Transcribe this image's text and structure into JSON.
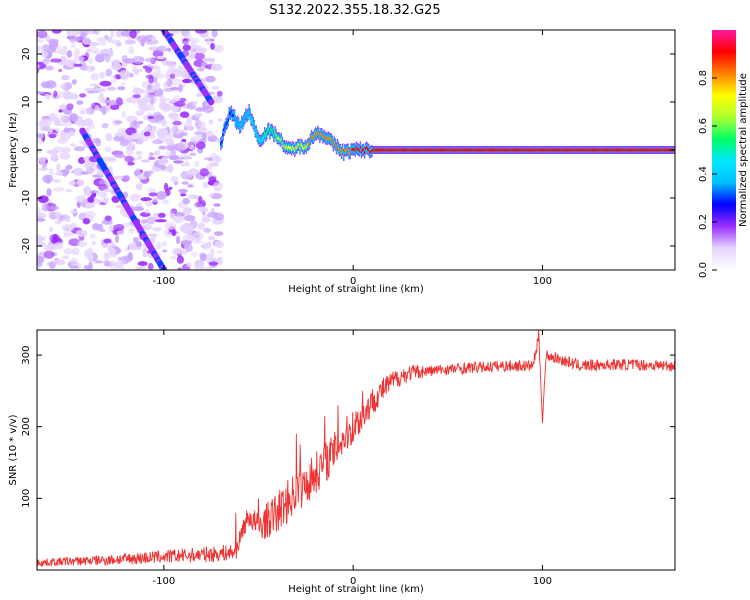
{
  "title": "S132.2022.355.18.32.G25",
  "colors": {
    "signal": "#ee3333",
    "axis": "#000000",
    "background": "#ffffff",
    "colormap": [
      "#ffffff",
      "#e6d5ff",
      "#9b30ff",
      "#0000ff",
      "#00bfff",
      "#00e8ff",
      "#00ff66",
      "#adff2f",
      "#ffff00",
      "#ff8000",
      "#ff0000",
      "#ff1aa0"
    ]
  },
  "chart_data": [
    {
      "type": "heatmap",
      "name": "spectrogram",
      "xlabel": "Height of straight line (km)",
      "ylabel": "Frequency (Hz)",
      "xlim": [
        -167,
        170
      ],
      "ylim": [
        -25,
        25
      ],
      "xticks": [
        -100,
        0,
        100
      ],
      "xtick_labels": [
        "-100",
        "0",
        "100"
      ],
      "yticks": [
        -20,
        -10,
        0,
        10,
        20
      ],
      "ytick_labels": [
        "-20",
        "-10",
        "0",
        "10",
        "20"
      ],
      "colorbar": {
        "label": "Normalized spectral amplitude",
        "range": [
          0,
          1
        ],
        "ticks": [
          0.0,
          0.2,
          0.4,
          0.6,
          0.8
        ],
        "tick_labels": [
          "0.0",
          "0.2",
          "0.4",
          "0.6",
          "0.8"
        ]
      },
      "noise_region_x": [
        -167,
        -70
      ],
      "diagonal_trace": {
        "from": [
          -143,
          4
        ],
        "to": [
          -100,
          -25
        ],
        "amplitude": 0.2
      },
      "upper_trace": {
        "from": [
          -100,
          25
        ],
        "to": [
          -75,
          10
        ],
        "amplitude": 0.2
      },
      "carrier": {
        "x_start": -70,
        "x_end": 170,
        "freq": [
          [
            -70,
            1.5
          ],
          [
            -65,
            8
          ],
          [
            -60,
            5
          ],
          [
            -55,
            8
          ],
          [
            -50,
            2
          ],
          [
            -45,
            4
          ],
          [
            -40,
            3
          ],
          [
            -35,
            0
          ],
          [
            -30,
            0.5
          ],
          [
            -25,
            1
          ],
          [
            -20,
            3.5
          ],
          [
            -15,
            3
          ],
          [
            -10,
            1
          ],
          [
            -5,
            -0.5
          ],
          [
            0,
            0
          ],
          [
            15,
            0
          ],
          [
            170,
            0
          ]
        ],
        "amplitude": [
          [
            -70,
            0.25
          ],
          [
            -50,
            0.45
          ],
          [
            -35,
            0.7
          ],
          [
            -20,
            0.8
          ],
          [
            -5,
            0.85
          ],
          [
            10,
            0.9
          ],
          [
            170,
            0.95
          ]
        ]
      }
    },
    {
      "type": "line",
      "name": "snr",
      "xlabel": "Height of straight line (km)",
      "ylabel": "SNR (10 * v/v)",
      "xlim": [
        -167,
        170
      ],
      "ylim": [
        0,
        335
      ],
      "xticks": [
        -100,
        0,
        100
      ],
      "xtick_labels": [
        "-100",
        "0",
        "100"
      ],
      "yticks": [
        100,
        200,
        300
      ],
      "ytick_labels": [
        "100",
        "200",
        "300"
      ],
      "series": [
        {
          "name": "SNR",
          "x": [
            -167,
            -150,
            -130,
            -110,
            -90,
            -75,
            -62,
            -58,
            -55,
            -50,
            -45,
            -40,
            -35,
            -30,
            -25,
            -20,
            -15,
            -10,
            -5,
            0,
            5,
            10,
            15,
            20,
            25,
            30,
            40,
            60,
            80,
            95,
            98,
            100,
            102,
            120,
            140,
            170
          ],
          "y": [
            10,
            12,
            14,
            17,
            20,
            22,
            25,
            60,
            75,
            60,
            70,
            80,
            95,
            110,
            120,
            135,
            150,
            165,
            185,
            200,
            215,
            235,
            250,
            262,
            270,
            275,
            278,
            282,
            285,
            285,
            325,
            215,
            300,
            285,
            287,
            285
          ],
          "noise_amplitude": [
            [
              -167,
              5
            ],
            [
              -60,
              12
            ],
            [
              -40,
              30
            ],
            [
              -20,
              30
            ],
            [
              0,
              25
            ],
            [
              20,
              15
            ],
            [
              40,
              8
            ],
            [
              170,
              8
            ]
          ],
          "spikes": [
            [
              -62,
              80
            ],
            [
              -50,
              100
            ],
            [
              -45,
              95
            ],
            [
              -30,
              190
            ],
            [
              -28,
              175
            ],
            [
              -15,
              215
            ],
            [
              -8,
              230
            ],
            [
              5,
              250
            ],
            [
              98,
              335
            ],
            [
              100,
              205
            ]
          ]
        }
      ]
    }
  ]
}
